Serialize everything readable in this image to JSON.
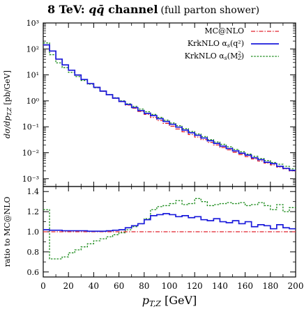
{
  "chart_data": [
    {
      "type": "line",
      "title": "8 TeV: qq̄ channel",
      "title_main": "8 TeV: ",
      "title_qq": "qq̄",
      "title_channel": " channel",
      "subtitle": "(full parton shower)",
      "xlabel": "",
      "ylabel": "dσ/dp",
      "ylabel_sub": "T,Z",
      "ylabel_unit": " [pb/GeV]",
      "log_y": true,
      "xlim": [
        0,
        200
      ],
      "ylim": [
        0.0005,
        1000
      ],
      "yticks": [
        "10³",
        "10²",
        "10¹",
        "10⁰",
        "10⁻¹",
        "10⁻²",
        "10⁻³"
      ],
      "ytick_values": [
        1000,
        100,
        10,
        1,
        0.1,
        0.01,
        0.001
      ],
      "legend_position": "top-right",
      "bin_width": 5,
      "x_edges": [
        0,
        5,
        10,
        15,
        20,
        25,
        30,
        35,
        40,
        45,
        50,
        55,
        60,
        65,
        70,
        75,
        80,
        85,
        90,
        95,
        100,
        105,
        110,
        115,
        120,
        125,
        130,
        135,
        140,
        145,
        150,
        155,
        160,
        165,
        170,
        175,
        180,
        185,
        190,
        195,
        200
      ],
      "series": [
        {
          "name": "MC@NLO",
          "color": "#e0202c",
          "dash": "6,2,1.5,2",
          "values": [
            140,
            82,
            40,
            24,
            15,
            9.8,
            6.6,
            4.6,
            3.3,
            2.35,
            1.7,
            1.25,
            0.93,
            0.69,
            0.52,
            0.39,
            0.3,
            0.23,
            0.175,
            0.135,
            0.105,
            0.082,
            0.064,
            0.05,
            0.04,
            0.032,
            0.025,
            0.02,
            0.016,
            0.013,
            0.0105,
            0.0086,
            0.0071,
            0.0058,
            0.0048,
            0.004,
            0.0034,
            0.0028,
            0.0024,
            0.002
          ]
        },
        {
          "name": "KrkNLO α_s(q²)",
          "name_text": "KrkNLO α",
          "name_sub": "s",
          "name_arg": "(q²)",
          "color": "#1a1adb",
          "dash": "",
          "values": [
            143,
            83,
            40.5,
            24.2,
            15.1,
            9.9,
            6.65,
            4.63,
            3.31,
            2.37,
            1.72,
            1.27,
            0.95,
            0.72,
            0.55,
            0.42,
            0.33,
            0.27,
            0.205,
            0.16,
            0.125,
            0.097,
            0.075,
            0.059,
            0.047,
            0.037,
            0.029,
            0.023,
            0.018,
            0.0145,
            0.0118,
            0.0096,
            0.0081,
            0.0064,
            0.0054,
            0.0043,
            0.0038,
            0.003,
            0.0025,
            0.0021
          ]
        },
        {
          "name": "KrkNLO α_s(M_Z²)",
          "name_text": "KrkNLO α",
          "name_sub": "s",
          "name_arg": "(M",
          "name_arg_sub": "Z",
          "name_arg_sup": "2",
          "name_arg_close": ")",
          "color": "#1a8a1a",
          "dash": "2.5,1.8",
          "values": [
            170,
            60,
            29,
            19,
            12.5,
            8.6,
            6.1,
            4.4,
            3.2,
            2.35,
            1.74,
            1.31,
            1.0,
            0.77,
            0.61,
            0.48,
            0.38,
            0.3,
            0.23,
            0.18,
            0.14,
            0.11,
            0.085,
            0.066,
            0.053,
            0.042,
            0.032,
            0.026,
            0.021,
            0.017,
            0.0135,
            0.011,
            0.0089,
            0.0073,
            0.006,
            0.005,
            0.0042,
            0.0036,
            0.003,
            0.0024
          ]
        }
      ]
    },
    {
      "type": "line",
      "title": "",
      "xlabel": "p",
      "xlabel_sub": "T,Z",
      "xlabel_unit": " [GeV]",
      "ylabel": "ratio to MC@NLO",
      "xlim": [
        0,
        200
      ],
      "ylim": [
        0.55,
        1.45
      ],
      "xticks": [
        0,
        20,
        40,
        60,
        80,
        100,
        120,
        140,
        160,
        180,
        200
      ],
      "yticks": [
        0.6,
        0.8,
        1.0,
        1.2,
        1.4
      ],
      "ytick_labels": [
        "0.6",
        "0.8",
        "1.0",
        "1.2",
        "1.4"
      ],
      "xtick_labels": [
        "0",
        "20",
        "40",
        "60",
        "80",
        "100",
        "120",
        "140",
        "160",
        "180",
        "200"
      ],
      "bin_width": 5,
      "x_edges": [
        0,
        5,
        10,
        15,
        20,
        25,
        30,
        35,
        40,
        45,
        50,
        55,
        60,
        65,
        70,
        75,
        80,
        85,
        90,
        95,
        100,
        105,
        110,
        115,
        120,
        125,
        130,
        135,
        140,
        145,
        150,
        155,
        160,
        165,
        170,
        175,
        180,
        185,
        190,
        195,
        200
      ],
      "series": [
        {
          "name": "MC@NLO",
          "color": "#e0202c",
          "dash": "6,2,1.5,2",
          "values": [
            1.0,
            1.0,
            1.0,
            1.0,
            1.0,
            1.0,
            1.0,
            1.0,
            1.0,
            1.0,
            1.0,
            1.0,
            1.0,
            1.0,
            1.0,
            1.0,
            1.0,
            1.0,
            1.0,
            1.0,
            1.0,
            1.0,
            1.0,
            1.0,
            1.0,
            1.0,
            1.0,
            1.0,
            1.0,
            1.0,
            1.0,
            1.0,
            1.0,
            1.0,
            1.0,
            1.0,
            1.0,
            1.0,
            1.0,
            1.0
          ]
        },
        {
          "name": "KrkNLO α_s(q²)",
          "color": "#1a1adb",
          "dash": "",
          "values": [
            1.02,
            1.015,
            1.015,
            1.01,
            1.01,
            1.01,
            1.01,
            1.005,
            1.005,
            1.005,
            1.01,
            1.015,
            1.02,
            1.04,
            1.06,
            1.08,
            1.12,
            1.16,
            1.17,
            1.18,
            1.17,
            1.15,
            1.16,
            1.14,
            1.15,
            1.12,
            1.11,
            1.13,
            1.1,
            1.09,
            1.11,
            1.08,
            1.1,
            1.05,
            1.07,
            1.06,
            1.03,
            1.07,
            1.04,
            1.03
          ]
        },
        {
          "name": "KrkNLO α_s(M_Z²)",
          "color": "#1a8a1a",
          "dash": "2.5,1.8",
          "values": [
            1.22,
            0.73,
            0.73,
            0.75,
            0.79,
            0.82,
            0.85,
            0.88,
            0.91,
            0.93,
            0.95,
            0.97,
            0.99,
            1.02,
            1.05,
            1.08,
            1.13,
            1.22,
            1.25,
            1.26,
            1.28,
            1.31,
            1.27,
            1.28,
            1.33,
            1.3,
            1.26,
            1.27,
            1.28,
            1.29,
            1.28,
            1.29,
            1.26,
            1.27,
            1.29,
            1.26,
            1.22,
            1.27,
            1.2,
            1.24
          ]
        }
      ]
    }
  ]
}
